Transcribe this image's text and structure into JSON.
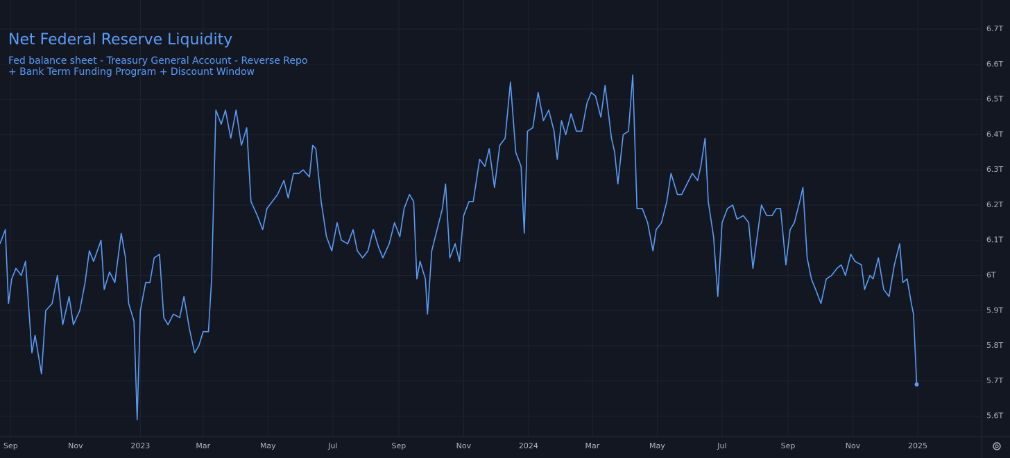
{
  "chart_data": {
    "type": "line",
    "title": "Net Federal Reserve Liquidity",
    "subtitle": [
      "Fed balance sheet - Treasury General Account - Reverse Repo",
      "+ Bank Term Funding Program + Discount Window"
    ],
    "color": "#5b9cf6",
    "grid": true,
    "xlim": [
      "2022-08-22",
      "2025-03-02"
    ],
    "xticks": [
      {
        "value": "2022-09-01",
        "label": "Sep"
      },
      {
        "value": "2022-11-01",
        "label": "Nov"
      },
      {
        "value": "2023-01-01",
        "label": "2023"
      },
      {
        "value": "2023-03-01",
        "label": "Mar"
      },
      {
        "value": "2023-05-01",
        "label": "May"
      },
      {
        "value": "2023-07-01",
        "label": "Jul"
      },
      {
        "value": "2023-09-01",
        "label": "Sep"
      },
      {
        "value": "2023-11-01",
        "label": "Nov"
      },
      {
        "value": "2024-01-01",
        "label": "2024"
      },
      {
        "value": "2024-03-01",
        "label": "Mar"
      },
      {
        "value": "2024-05-01",
        "label": "May"
      },
      {
        "value": "2024-07-01",
        "label": "Jul"
      },
      {
        "value": "2024-09-01",
        "label": "Sep"
      },
      {
        "value": "2024-11-01",
        "label": "Nov"
      },
      {
        "value": "2025-01-01",
        "label": "2025"
      }
    ],
    "ylim": [
      5.542,
      6.783
    ],
    "yticks": [
      {
        "value": 5.6,
        "label": "5.6T"
      },
      {
        "value": 5.7,
        "label": "5.7T"
      },
      {
        "value": 5.8,
        "label": "5.8T"
      },
      {
        "value": 5.9,
        "label": "5.9T"
      },
      {
        "value": 6,
        "label": "6T"
      },
      {
        "value": 6.1,
        "label": "6.1T"
      },
      {
        "value": 6.2,
        "label": "6.2T"
      },
      {
        "value": 6.3,
        "label": "6.3T"
      },
      {
        "value": 6.4,
        "label": "6.4T"
      },
      {
        "value": 6.5,
        "label": "6.5T"
      },
      {
        "value": 6.6,
        "label": "6.6T"
      },
      {
        "value": 6.7,
        "label": "6.7T"
      }
    ],
    "x": [
      "2022-08-22",
      "2022-08-27",
      "2022-08-30",
      "2022-09-02",
      "2022-09-06",
      "2022-09-11",
      "2022-09-15",
      "2022-09-21",
      "2022-09-24",
      "2022-09-30",
      "2022-10-04",
      "2022-10-10",
      "2022-10-15",
      "2022-10-20",
      "2022-10-26",
      "2022-10-30",
      "2022-11-05",
      "2022-11-10",
      "2022-11-14",
      "2022-11-18",
      "2022-11-25",
      "2022-11-28",
      "2022-12-03",
      "2022-12-08",
      "2022-12-14",
      "2022-12-18",
      "2022-12-21",
      "2022-12-26",
      "2022-12-29",
      "2023-01-01",
      "2023-01-06",
      "2023-01-10",
      "2023-01-14",
      "2023-01-19",
      "2023-01-23",
      "2023-01-27",
      "2023-02-01",
      "2023-02-07",
      "2023-02-11",
      "2023-02-16",
      "2023-02-21",
      "2023-02-25",
      "2023-03-01",
      "2023-03-06",
      "2023-03-09",
      "2023-03-13",
      "2023-03-18",
      "2023-03-22",
      "2023-03-27",
      "2023-04-01",
      "2023-04-06",
      "2023-04-11",
      "2023-04-15",
      "2023-04-21",
      "2023-04-26",
      "2023-04-30",
      "2023-05-05",
      "2023-05-10",
      "2023-05-16",
      "2023-05-20",
      "2023-05-25",
      "2023-05-30",
      "2023-06-03",
      "2023-06-09",
      "2023-06-12",
      "2023-06-15",
      "2023-06-20",
      "2023-06-25",
      "2023-06-30",
      "2023-07-05",
      "2023-07-09",
      "2023-07-15",
      "2023-07-20",
      "2023-07-24",
      "2023-07-29",
      "2023-08-03",
      "2023-08-08",
      "2023-08-13",
      "2023-08-17",
      "2023-08-23",
      "2023-08-28",
      "2023-09-02",
      "2023-09-06",
      "2023-09-11",
      "2023-09-15",
      "2023-09-18",
      "2023-09-21",
      "2023-09-26",
      "2023-09-28",
      "2023-10-02",
      "2023-10-07",
      "2023-10-12",
      "2023-10-15",
      "2023-10-19",
      "2023-10-24",
      "2023-10-28",
      "2023-11-01",
      "2023-11-06",
      "2023-11-10",
      "2023-11-16",
      "2023-11-21",
      "2023-11-25",
      "2023-11-30",
      "2023-12-05",
      "2023-12-10",
      "2023-12-15",
      "2023-12-20",
      "2023-12-25",
      "2023-12-28",
      "2023-12-31",
      "2024-01-05",
      "2024-01-10",
      "2024-01-15",
      "2024-01-20",
      "2024-01-25",
      "2024-01-28",
      "2024-02-01",
      "2024-02-05",
      "2024-02-10",
      "2024-02-15",
      "2024-02-20",
      "2024-02-25",
      "2024-02-29",
      "2024-03-04",
      "2024-03-09",
      "2024-03-13",
      "2024-03-19",
      "2024-03-22",
      "2024-03-25",
      "2024-03-30",
      "2024-04-04",
      "2024-04-08",
      "2024-04-12",
      "2024-04-17",
      "2024-04-22",
      "2024-04-27",
      "2024-04-30",
      "2024-05-05",
      "2024-05-10",
      "2024-05-14",
      "2024-05-20",
      "2024-05-24",
      "2024-05-29",
      "2024-06-03",
      "2024-06-08",
      "2024-06-11",
      "2024-06-15",
      "2024-06-18",
      "2024-06-23",
      "2024-06-27",
      "2024-07-01",
      "2024-07-06",
      "2024-07-11",
      "2024-07-15",
      "2024-07-21",
      "2024-07-26",
      "2024-07-30",
      "2024-08-03",
      "2024-08-07",
      "2024-08-12",
      "2024-08-17",
      "2024-08-21",
      "2024-08-25",
      "2024-08-30",
      "2024-09-03",
      "2024-09-07",
      "2024-09-12",
      "2024-09-15",
      "2024-09-19",
      "2024-09-23",
      "2024-09-27",
      "2024-10-02",
      "2024-10-07",
      "2024-10-12",
      "2024-10-17",
      "2024-10-21",
      "2024-10-25",
      "2024-10-30",
      "2024-11-03",
      "2024-11-09",
      "2024-11-12",
      "2024-11-17",
      "2024-11-20",
      "2024-11-25",
      "2024-11-30",
      "2024-12-05",
      "2024-12-10",
      "2024-12-15",
      "2024-12-18",
      "2024-12-22",
      "2024-12-26",
      "2024-12-28",
      "2024-12-31"
    ],
    "values": [
      6.09,
      6.13,
      5.92,
      5.99,
      6.02,
      6.0,
      6.04,
      5.78,
      5.83,
      5.72,
      5.9,
      5.92,
      6.0,
      5.86,
      5.94,
      5.86,
      5.9,
      5.98,
      6.07,
      6.04,
      6.1,
      5.96,
      6.01,
      5.98,
      6.12,
      6.05,
      5.92,
      5.87,
      5.59,
      5.9,
      5.98,
      5.98,
      6.05,
      6.06,
      5.88,
      5.86,
      5.89,
      5.88,
      5.94,
      5.85,
      5.78,
      5.8,
      5.84,
      5.84,
      5.99,
      6.47,
      6.43,
      6.47,
      6.39,
      6.47,
      6.37,
      6.42,
      6.21,
      6.17,
      6.13,
      6.19,
      6.21,
      6.23,
      6.27,
      6.22,
      6.29,
      6.29,
      6.3,
      6.28,
      6.37,
      6.36,
      6.21,
      6.11,
      6.07,
      6.15,
      6.1,
      6.09,
      6.13,
      6.07,
      6.05,
      6.07,
      6.13,
      6.08,
      6.05,
      6.09,
      6.15,
      6.11,
      6.19,
      6.23,
      6.21,
      5.99,
      6.04,
      5.99,
      5.89,
      6.07,
      6.13,
      6.19,
      6.26,
      6.05,
      6.09,
      6.04,
      6.17,
      6.21,
      6.21,
      6.33,
      6.31,
      6.36,
      6.25,
      6.37,
      6.39,
      6.55,
      6.35,
      6.31,
      6.12,
      6.41,
      6.42,
      6.52,
      6.44,
      6.47,
      6.41,
      6.33,
      6.44,
      6.4,
      6.46,
      6.41,
      6.41,
      6.49,
      6.52,
      6.51,
      6.45,
      6.54,
      6.39,
      6.35,
      6.26,
      6.4,
      6.41,
      6.57,
      6.19,
      6.19,
      6.15,
      6.07,
      6.13,
      6.15,
      6.21,
      6.29,
      6.23,
      6.23,
      6.26,
      6.29,
      6.27,
      6.31,
      6.39,
      6.21,
      6.11,
      5.94,
      6.15,
      6.19,
      6.2,
      6.16,
      6.17,
      6.15,
      6.02,
      6.11,
      6.2,
      6.17,
      6.17,
      6.19,
      6.19,
      6.03,
      6.13,
      6.15,
      6.21,
      6.25,
      6.05,
      5.99,
      5.96,
      5.92,
      5.99,
      6.0,
      6.02,
      6.03,
      6.0,
      6.06,
      6.04,
      6.03,
      5.96,
      6.0,
      5.99,
      6.05,
      5.96,
      5.94,
      6.03,
      6.09,
      5.98,
      5.99,
      5.92,
      5.89,
      5.69
    ]
  }
}
